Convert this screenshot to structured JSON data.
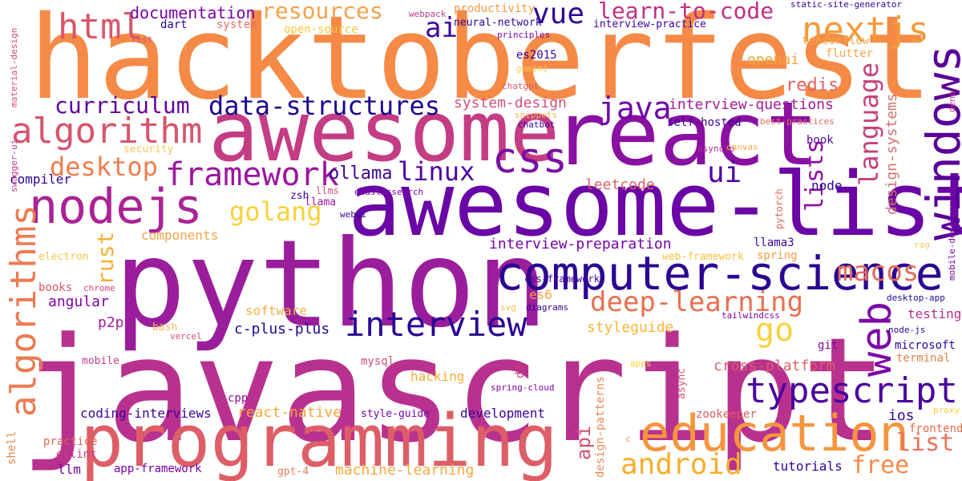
{
  "words": [
    {
      "text": "hacktoberfest",
      "color": "#f58a47",
      "rotate": false
    },
    {
      "text": "javascript",
      "color": "#b8318f",
      "rotate": false
    },
    {
      "text": "python",
      "color": "#9a1e9b",
      "rotate": false
    },
    {
      "text": "awesome-list",
      "color": "#6a05a6",
      "rotate": false
    },
    {
      "text": "awesome",
      "color": "#c43c84",
      "rotate": false
    },
    {
      "text": "react",
      "color": "#8a10a1",
      "rotate": false
    },
    {
      "text": "programming",
      "color": "#dd5e67",
      "rotate": false
    },
    {
      "text": "computer-science",
      "color": "#2b0592",
      "rotate": false
    },
    {
      "text": "windows",
      "color": "#5a0199",
      "rotate": true
    },
    {
      "text": "education",
      "color": "#f5953e",
      "rotate": false
    },
    {
      "text": "nodejs",
      "color": "#aa2395",
      "rotate": false
    },
    {
      "text": "typescript",
      "color": "#4a039e",
      "rotate": false
    },
    {
      "text": "algorithms",
      "color": "#ed7a51",
      "rotate": true
    },
    {
      "text": "algorithm",
      "color": "#d6556d",
      "rotate": false
    },
    {
      "text": "interview",
      "color": "#280594",
      "rotate": false
    },
    {
      "text": "css",
      "color": "#7a0ea4",
      "rotate": false
    },
    {
      "text": "web",
      "color": "#7d08a6",
      "rotate": true
    },
    {
      "text": "html",
      "color": "#d8576b",
      "rotate": false
    },
    {
      "text": "nextjs",
      "color": "#f49a3b",
      "rotate": false
    },
    {
      "text": "framework",
      "color": "#9b179e",
      "rotate": false
    },
    {
      "text": "data-structures",
      "color": "#1c068e",
      "rotate": false
    },
    {
      "text": "android",
      "color": "#f6ae2c",
      "rotate": false
    },
    {
      "text": "deep-learning",
      "color": "#e8704e",
      "rotate": false
    },
    {
      "text": "java",
      "color": "#6f00a8",
      "rotate": false
    },
    {
      "text": "macos",
      "color": "#e36c59",
      "rotate": false
    },
    {
      "text": "go",
      "color": "#f7d23d",
      "rotate": false
    },
    {
      "text": "language",
      "color": "#c5407e",
      "rotate": true
    },
    {
      "text": "desktop",
      "color": "#ee7d4f",
      "rotate": false
    },
    {
      "text": "ui",
      "color": "#4d02a2",
      "rotate": false
    },
    {
      "text": "curriculum",
      "color": "#5e049f",
      "rotate": false
    },
    {
      "text": "golang",
      "color": "#f8d13a",
      "rotate": false
    },
    {
      "text": "vue",
      "color": "#300595",
      "rotate": false
    },
    {
      "text": "learn-to-code",
      "color": "#c22f83",
      "rotate": false
    },
    {
      "text": "linux",
      "color": "#4c04a0",
      "rotate": false
    },
    {
      "text": "ai",
      "color": "#3e049c",
      "rotate": false
    },
    {
      "text": "resources",
      "color": "#f5a24a",
      "rotate": false
    },
    {
      "text": "free",
      "color": "#f48a48",
      "rotate": false
    },
    {
      "text": "list",
      "color": "#e8735a",
      "rotate": false
    },
    {
      "text": "lists",
      "color": "#8f0da4",
      "rotate": true
    },
    {
      "text": "rust",
      "color": "#f5b33a",
      "rotate": true
    },
    {
      "text": "api",
      "color": "#d6516d",
      "rotate": true
    },
    {
      "text": "documentation",
      "color": "#7b04a8",
      "rotate": false
    },
    {
      "text": "html",
      "color": "#d8576b",
      "rotate": false
    },
    {
      "text": "system-design",
      "color": "#d0517b",
      "rotate": false
    },
    {
      "text": "interview-questions",
      "color": "#a31d98",
      "rotate": false
    },
    {
      "text": "design-systems",
      "color": "#d2716c",
      "rotate": true
    },
    {
      "text": "ollama",
      "color": "#3b049a",
      "rotate": false
    },
    {
      "text": "interview-preparation",
      "color": "#7604a5",
      "rotate": false
    },
    {
      "text": "angular",
      "color": "#7c03a8",
      "rotate": false
    },
    {
      "text": "c-plus-plus",
      "color": "#1e068f",
      "rotate": false
    },
    {
      "text": "react-native",
      "color": "#f6a53c",
      "rotate": false
    },
    {
      "text": "machine-learning",
      "color": "#f4a93f",
      "rotate": false
    },
    {
      "text": "cross-platform",
      "color": "#dd5f66",
      "rotate": false
    },
    {
      "text": "coding-interviews",
      "color": "#3a049a",
      "rotate": false
    },
    {
      "text": "styleguide",
      "color": "#f5b836",
      "rotate": false
    },
    {
      "text": "leetcode",
      "color": "#de6164",
      "rotate": false
    },
    {
      "text": "components",
      "color": "#f3a44a",
      "rotate": false
    },
    {
      "text": "testing",
      "color": "#b42d8d",
      "rotate": false
    },
    {
      "text": "redis",
      "color": "#e06362",
      "rotate": false
    },
    {
      "text": "openai",
      "color": "#f1a53b",
      "rotate": false
    },
    {
      "text": "compiler",
      "color": "#2c0594",
      "rotate": false
    },
    {
      "text": "p2p",
      "color": "#9f1e9c",
      "rotate": false
    },
    {
      "text": "software",
      "color": "#f3b048",
      "rotate": false
    },
    {
      "text": "development",
      "color": "#3a049a",
      "rotate": false
    },
    {
      "text": "ios",
      "color": "#2f0596",
      "rotate": false
    },
    {
      "text": "frontend",
      "color": "#e5694c",
      "rotate": false
    },
    {
      "text": "tutorials",
      "color": "#2a0593",
      "rotate": false
    },
    {
      "text": "llm",
      "color": "#7a04a6",
      "rotate": false
    },
    {
      "text": "practice",
      "color": "#e0675c",
      "rotate": false
    },
    {
      "text": "eslint",
      "color": "#c93e86",
      "rotate": false
    },
    {
      "text": "shell",
      "color": "#e38b47",
      "rotate": true
    },
    {
      "text": "app-framework",
      "color": "#7602a6",
      "rotate": false
    },
    {
      "text": "gpt-4",
      "color": "#ec7f59",
      "rotate": false
    },
    {
      "text": "zookeeper",
      "color": "#e0595c",
      "rotate": false
    },
    {
      "text": "microsoft",
      "color": "#2a0593",
      "rotate": false
    },
    {
      "text": "git",
      "color": "#7a08a5",
      "rotate": false
    },
    {
      "text": "terminal",
      "color": "#e5824c",
      "rotate": false
    },
    {
      "text": "node-js",
      "color": "#2a0593",
      "rotate": false
    },
    {
      "text": "desktop-app",
      "color": "#220690",
      "rotate": false
    },
    {
      "text": "mobile-development",
      "color": "#7b06a6",
      "rotate": true
    },
    {
      "text": "proxy",
      "color": "#f7cb3e",
      "rotate": false
    },
    {
      "text": "rag",
      "color": "#f6c45d",
      "rotate": false
    },
    {
      "text": "deno",
      "color": "#c23f82",
      "rotate": true
    },
    {
      "text": "static-site-generator",
      "color": "#33059a",
      "rotate": false
    },
    {
      "text": "tensorflow",
      "color": "#f5a54c",
      "rotate": false
    },
    {
      "text": "flutter",
      "color": "#f4a449",
      "rotate": false
    },
    {
      "text": "book",
      "color": "#4a03a0",
      "rotate": false
    },
    {
      "text": "node",
      "color": "#2d0594",
      "rotate": false
    },
    {
      "text": "llama3",
      "color": "#3b049a",
      "rotate": false
    },
    {
      "text": "spring",
      "color": "#f69c45",
      "rotate": false
    },
    {
      "text": "web-framework",
      "color": "#f6c140",
      "rotate": false
    },
    {
      "text": "tailwindcss",
      "color": "#7a04a6",
      "rotate": false
    },
    {
      "text": "pytorch",
      "color": "#e06c5c",
      "rotate": true
    },
    {
      "text": "async",
      "color": "#d95974",
      "rotate": true
    },
    {
      "text": "spring-cloud",
      "color": "#7d03a7",
      "rotate": false
    },
    {
      "text": "apps",
      "color": "#f6cc3a",
      "rotate": false
    },
    {
      "text": "design-patterns",
      "color": "#ec8956",
      "rotate": true
    },
    {
      "text": "c",
      "color": "#f29e52",
      "rotate": false
    },
    {
      "text": "d3",
      "color": "#c9417b",
      "rotate": true
    },
    {
      "text": "hacking",
      "color": "#f6ab3c",
      "rotate": false
    },
    {
      "text": "mysql",
      "color": "#d05071",
      "rotate": false
    },
    {
      "text": "es6",
      "color": "#f6a244",
      "rotate": false
    },
    {
      "text": "diagrams",
      "color": "#2a0593",
      "rotate": false
    },
    {
      "text": "svg",
      "color": "#f5bb4d",
      "rotate": false
    },
    {
      "text": "chrome",
      "color": "#d24b77",
      "rotate": false
    },
    {
      "text": "books",
      "color": "#d9556f",
      "rotate": false
    },
    {
      "text": "electron",
      "color": "#f6c54a",
      "rotate": false
    },
    {
      "text": "cpp",
      "color": "#8e0ea1",
      "rotate": false
    },
    {
      "text": "bash",
      "color": "#f4b95a",
      "rotate": false
    },
    {
      "text": "vercel",
      "color": "#d34d71",
      "rotate": false
    },
    {
      "text": "mobile",
      "color": "#c33e83",
      "rotate": false
    },
    {
      "text": "style-guide",
      "color": "#7a04a6",
      "rotate": false
    },
    {
      "text": "css-framework",
      "color": "#3b049a",
      "rotate": false
    },
    {
      "text": "webui",
      "color": "#3a049a",
      "rotate": false
    },
    {
      "text": "llama",
      "color": "#9a189e",
      "rotate": false
    },
    {
      "text": "llms",
      "color": "#d0517c",
      "rotate": false
    },
    {
      "text": "zsh",
      "color": "#3a049a",
      "rotate": false
    },
    {
      "text": "elasticsearch",
      "color": "#7c06a6",
      "rotate": false
    },
    {
      "text": "self-hosted",
      "color": "#3b049a",
      "rotate": false
    },
    {
      "text": "chatbot",
      "color": "#3a049a",
      "rotate": false
    },
    {
      "text": "asyncio",
      "color": "#b42891",
      "rotate": false
    },
    {
      "text": "canvas",
      "color": "#f6ab4c",
      "rotate": false
    },
    {
      "text": "best-practices",
      "color": "#e06c63",
      "rotate": false
    },
    {
      "text": "chatgpt",
      "color": "#d85a66",
      "rotate": false
    },
    {
      "text": "snippets",
      "color": "#f5b456",
      "rotate": false
    },
    {
      "text": "es2015",
      "color": "#3c049b",
      "rotate": false
    },
    {
      "text": "gemini",
      "color": "#f6c85a",
      "rotate": false
    },
    {
      "text": "principles",
      "color": "#7b04a6",
      "rotate": false
    },
    {
      "text": "neural-network",
      "color": "#2c0594",
      "rotate": false
    },
    {
      "text": "webpack",
      "color": "#c03a84",
      "rotate": false
    },
    {
      "text": "productivity",
      "color": "#f29a43",
      "rotate": false
    },
    {
      "text": "open-source",
      "color": "#f6c53a",
      "rotate": false
    },
    {
      "text": "system",
      "color": "#e27062",
      "rotate": false
    },
    {
      "text": "dart",
      "color": "#2a0593",
      "rotate": false
    },
    {
      "text": "rest",
      "color": "#d2506f",
      "rotate": false
    },
    {
      "text": "material-design",
      "color": "#d24d74",
      "rotate": true
    },
    {
      "text": "swagger-ui",
      "color": "#c14287",
      "rotate": true
    },
    {
      "text": "security",
      "color": "#f6c85a",
      "rotate": false
    },
    {
      "text": "interview-practice",
      "color": "#3a049a",
      "rotate": false
    }
  ]
}
